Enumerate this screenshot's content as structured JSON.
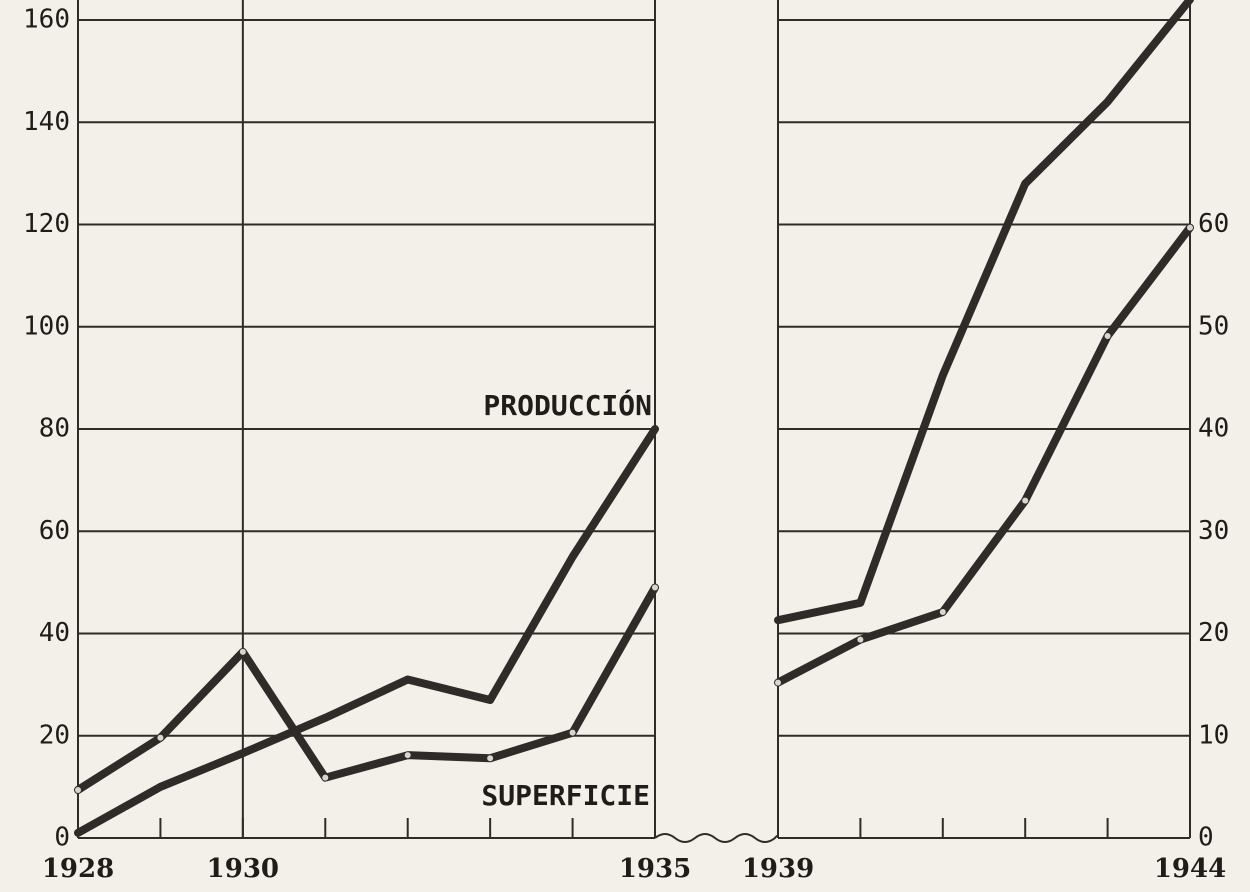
{
  "chart_data": {
    "type": "line",
    "x": [
      1928,
      1929,
      1930,
      1931,
      1932,
      1933,
      1934,
      1935,
      1939,
      1940,
      1941,
      1942,
      1943,
      1944
    ],
    "xlim": [
      [
        1928,
        1935
      ],
      [
        1939,
        1944
      ]
    ],
    "xticks": [
      1928,
      1930,
      1935,
      1939,
      1944
    ],
    "ylim": [
      0,
      160
    ],
    "yticks": [
      0,
      20,
      40,
      60,
      80,
      100,
      120,
      140,
      160
    ],
    "y2lim": [
      0,
      80
    ],
    "y2ticks": [
      0,
      10,
      20,
      30,
      40,
      50,
      60
    ],
    "grid": true,
    "series": [
      {
        "name": "PRODUCCIÓN",
        "color": "#2e2b29",
        "values": [
          1,
          10,
          16.6,
          23.5,
          31,
          27,
          55,
          80,
          42.6,
          46,
          90.5,
          128,
          144,
          164
        ]
      },
      {
        "name": "SUPERFICIE",
        "color": "#2e2b29",
        "axis": "y2",
        "markers": true,
        "values": [
          4.7,
          9.8,
          18.2,
          5.9,
          8.1,
          7.8,
          10.3,
          24.5,
          15.2,
          19.4,
          22.1,
          33,
          49.1,
          59.7
        ]
      }
    ]
  }
}
